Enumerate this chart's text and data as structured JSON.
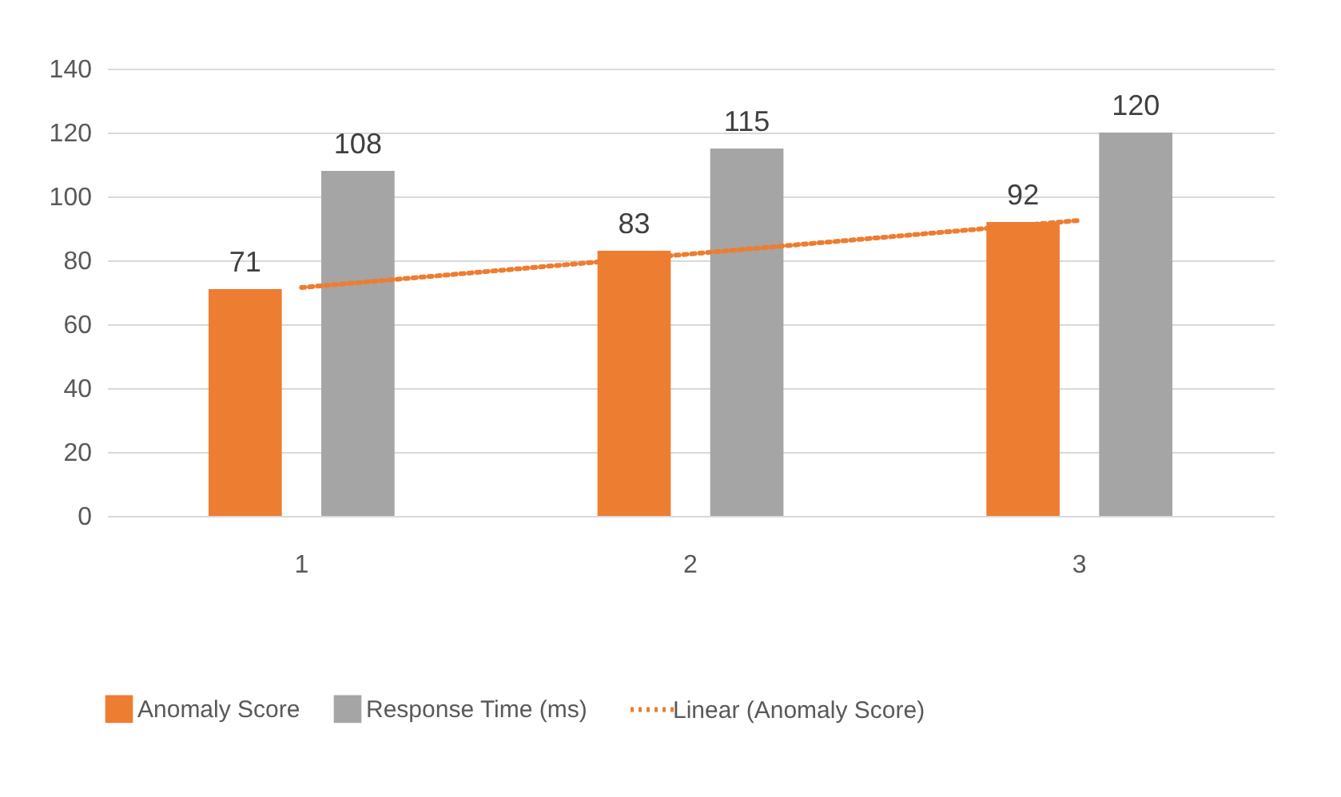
{
  "chart_data": {
    "type": "bar",
    "categories": [
      "1",
      "2",
      "3"
    ],
    "series": [
      {
        "name": "Anomaly Score",
        "color": "#ed7d31",
        "values": [
          71,
          83,
          92
        ],
        "value_labels": [
          "71",
          "83",
          "92"
        ]
      },
      {
        "name": "Response Time (ms)",
        "color": "#a5a5a5",
        "values": [
          108,
          115,
          120
        ],
        "value_labels": [
          "108",
          "115",
          "120"
        ]
      },
      {
        "name": "Linear (Anomaly Score)",
        "type": "line",
        "color": "#ed7d31",
        "line_style": "dotted",
        "values": [
          71.5,
          82,
          92.5
        ]
      }
    ],
    "ylim": [
      0,
      140
    ],
    "yticks": [
      0,
      20,
      40,
      60,
      80,
      100,
      120,
      140
    ],
    "grid": "y",
    "legend": "bottom"
  }
}
